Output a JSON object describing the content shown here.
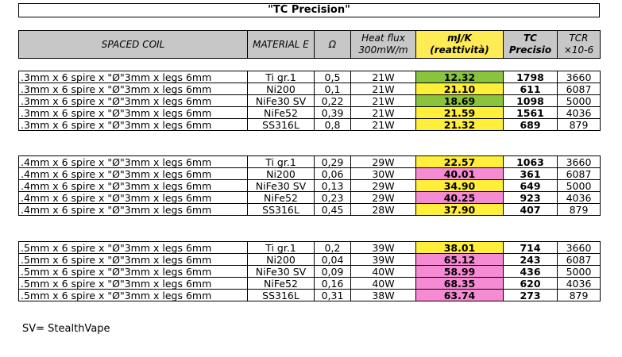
{
  "title": "\"TC Precision\"",
  "headers": {
    "coil": "SPACED COIL",
    "material": "MATERIAL E",
    "ohm": "Ω",
    "heat_flux": "Heat flux 300mW/m",
    "mjk": "mJ/K (reattività)",
    "tc": "TC Precisio",
    "tcr": "TCR ×10-6"
  },
  "colors": {
    "green": "#8ac43f",
    "yellow": "#ffef3a",
    "pink": "#f58bd3",
    "header": "#c7c7c7"
  },
  "groups": [
    {
      "rows": [
        {
          "coil": ".3mm x 6 spire x \"Ø\"3mm x legs 6mm",
          "material": "Ti gr.1",
          "ohm": "0,5",
          "heat": "21W",
          "mjk": "12.32",
          "color": "green",
          "tc": "1798",
          "tcr": "3660"
        },
        {
          "coil": ".3mm x 6 spire x \"Ø\"3mm x legs 6mm",
          "material": "Ni200",
          "ohm": "0,1",
          "heat": "21W",
          "mjk": "21.10",
          "color": "yellow",
          "tc": "611",
          "tcr": "6087"
        },
        {
          "coil": ".3mm x 6 spire x \"Ø\"3mm x legs 6mm",
          "material": "NiFe30 SV",
          "ohm": "0,22",
          "heat": "21W",
          "mjk": "18.69",
          "color": "green",
          "tc": "1098",
          "tcr": "5000"
        },
        {
          "coil": ".3mm x 6 spire x \"Ø\"3mm x legs 6mm",
          "material": "NiFe52",
          "ohm": "0,39",
          "heat": "21W",
          "mjk": "21.59",
          "color": "yellow",
          "tc": "1561",
          "tcr": "4036"
        },
        {
          "coil": ".3mm x 6 spire x \"Ø\"3mm x legs 6mm",
          "material": "SS316L",
          "ohm": "0,8",
          "heat": "21W",
          "mjk": "21.32",
          "color": "yellow",
          "tc": "689",
          "tcr": "879"
        }
      ]
    },
    {
      "rows": [
        {
          "coil": ".4mm x 6 spire x \"Ø\"3mm x legs 6mm",
          "material": "Ti gr.1",
          "ohm": "0,29",
          "heat": "29W",
          "mjk": "22.57",
          "color": "yellow",
          "tc": "1063",
          "tcr": "3660"
        },
        {
          "coil": ".4mm x 6 spire x \"Ø\"3mm x legs 6mm",
          "material": "Ni200",
          "ohm": "0,06",
          "heat": "30W",
          "mjk": "40.01",
          "color": "pink",
          "tc": "361",
          "tcr": "6087"
        },
        {
          "coil": ".4mm x 6 spire x \"Ø\"3mm x legs 6mm",
          "material": "NiFe30 SV",
          "ohm": "0,13",
          "heat": "29W",
          "mjk": "34.90",
          "color": "yellow",
          "tc": "649",
          "tcr": "5000"
        },
        {
          "coil": ".4mm x 6 spire x \"Ø\"3mm x legs 6mm",
          "material": "NiFe52",
          "ohm": "0,23",
          "heat": "29W",
          "mjk": "40.25",
          "color": "pink",
          "tc": "923",
          "tcr": "4036"
        },
        {
          "coil": ".4mm x 6 spire x \"Ø\"3mm x legs 6mm",
          "material": "SS316L",
          "ohm": "0,45",
          "heat": "28W",
          "mjk": "37.90",
          "color": "yellow",
          "tc": "407",
          "tcr": "879"
        }
      ]
    },
    {
      "rows": [
        {
          "coil": ".5mm x 6 spire x \"Ø\"3mm x legs 6mm",
          "material": "Ti gr.1",
          "ohm": "0,2",
          "heat": "39W",
          "mjk": "38.01",
          "color": "yellow",
          "tc": "714",
          "tcr": "3660"
        },
        {
          "coil": ".5mm x 6 spire x \"Ø\"3mm x legs 6mm",
          "material": "Ni200",
          "ohm": "0,04",
          "heat": "39W",
          "mjk": "65.12",
          "color": "pink",
          "tc": "243",
          "tcr": "6087"
        },
        {
          "coil": ".5mm x 6 spire x \"Ø\"3mm x legs 6mm",
          "material": "NiFe30 SV",
          "ohm": "0,09",
          "heat": "40W",
          "mjk": "58.99",
          "color": "pink",
          "tc": "436",
          "tcr": "5000"
        },
        {
          "coil": ".5mm x 6 spire x \"Ø\"3mm x legs 6mm",
          "material": "NiFe52",
          "ohm": "0,16",
          "heat": "40W",
          "mjk": "68.35",
          "color": "pink",
          "tc": "620",
          "tcr": "4036"
        },
        {
          "coil": ".5mm x 6 spire x \"Ø\"3mm x legs 6mm",
          "material": "SS316L",
          "ohm": "0,31",
          "heat": "38W",
          "mjk": "63.74",
          "color": "pink",
          "tc": "273",
          "tcr": "879"
        }
      ]
    }
  ],
  "footnote": "SV= StealthVape"
}
